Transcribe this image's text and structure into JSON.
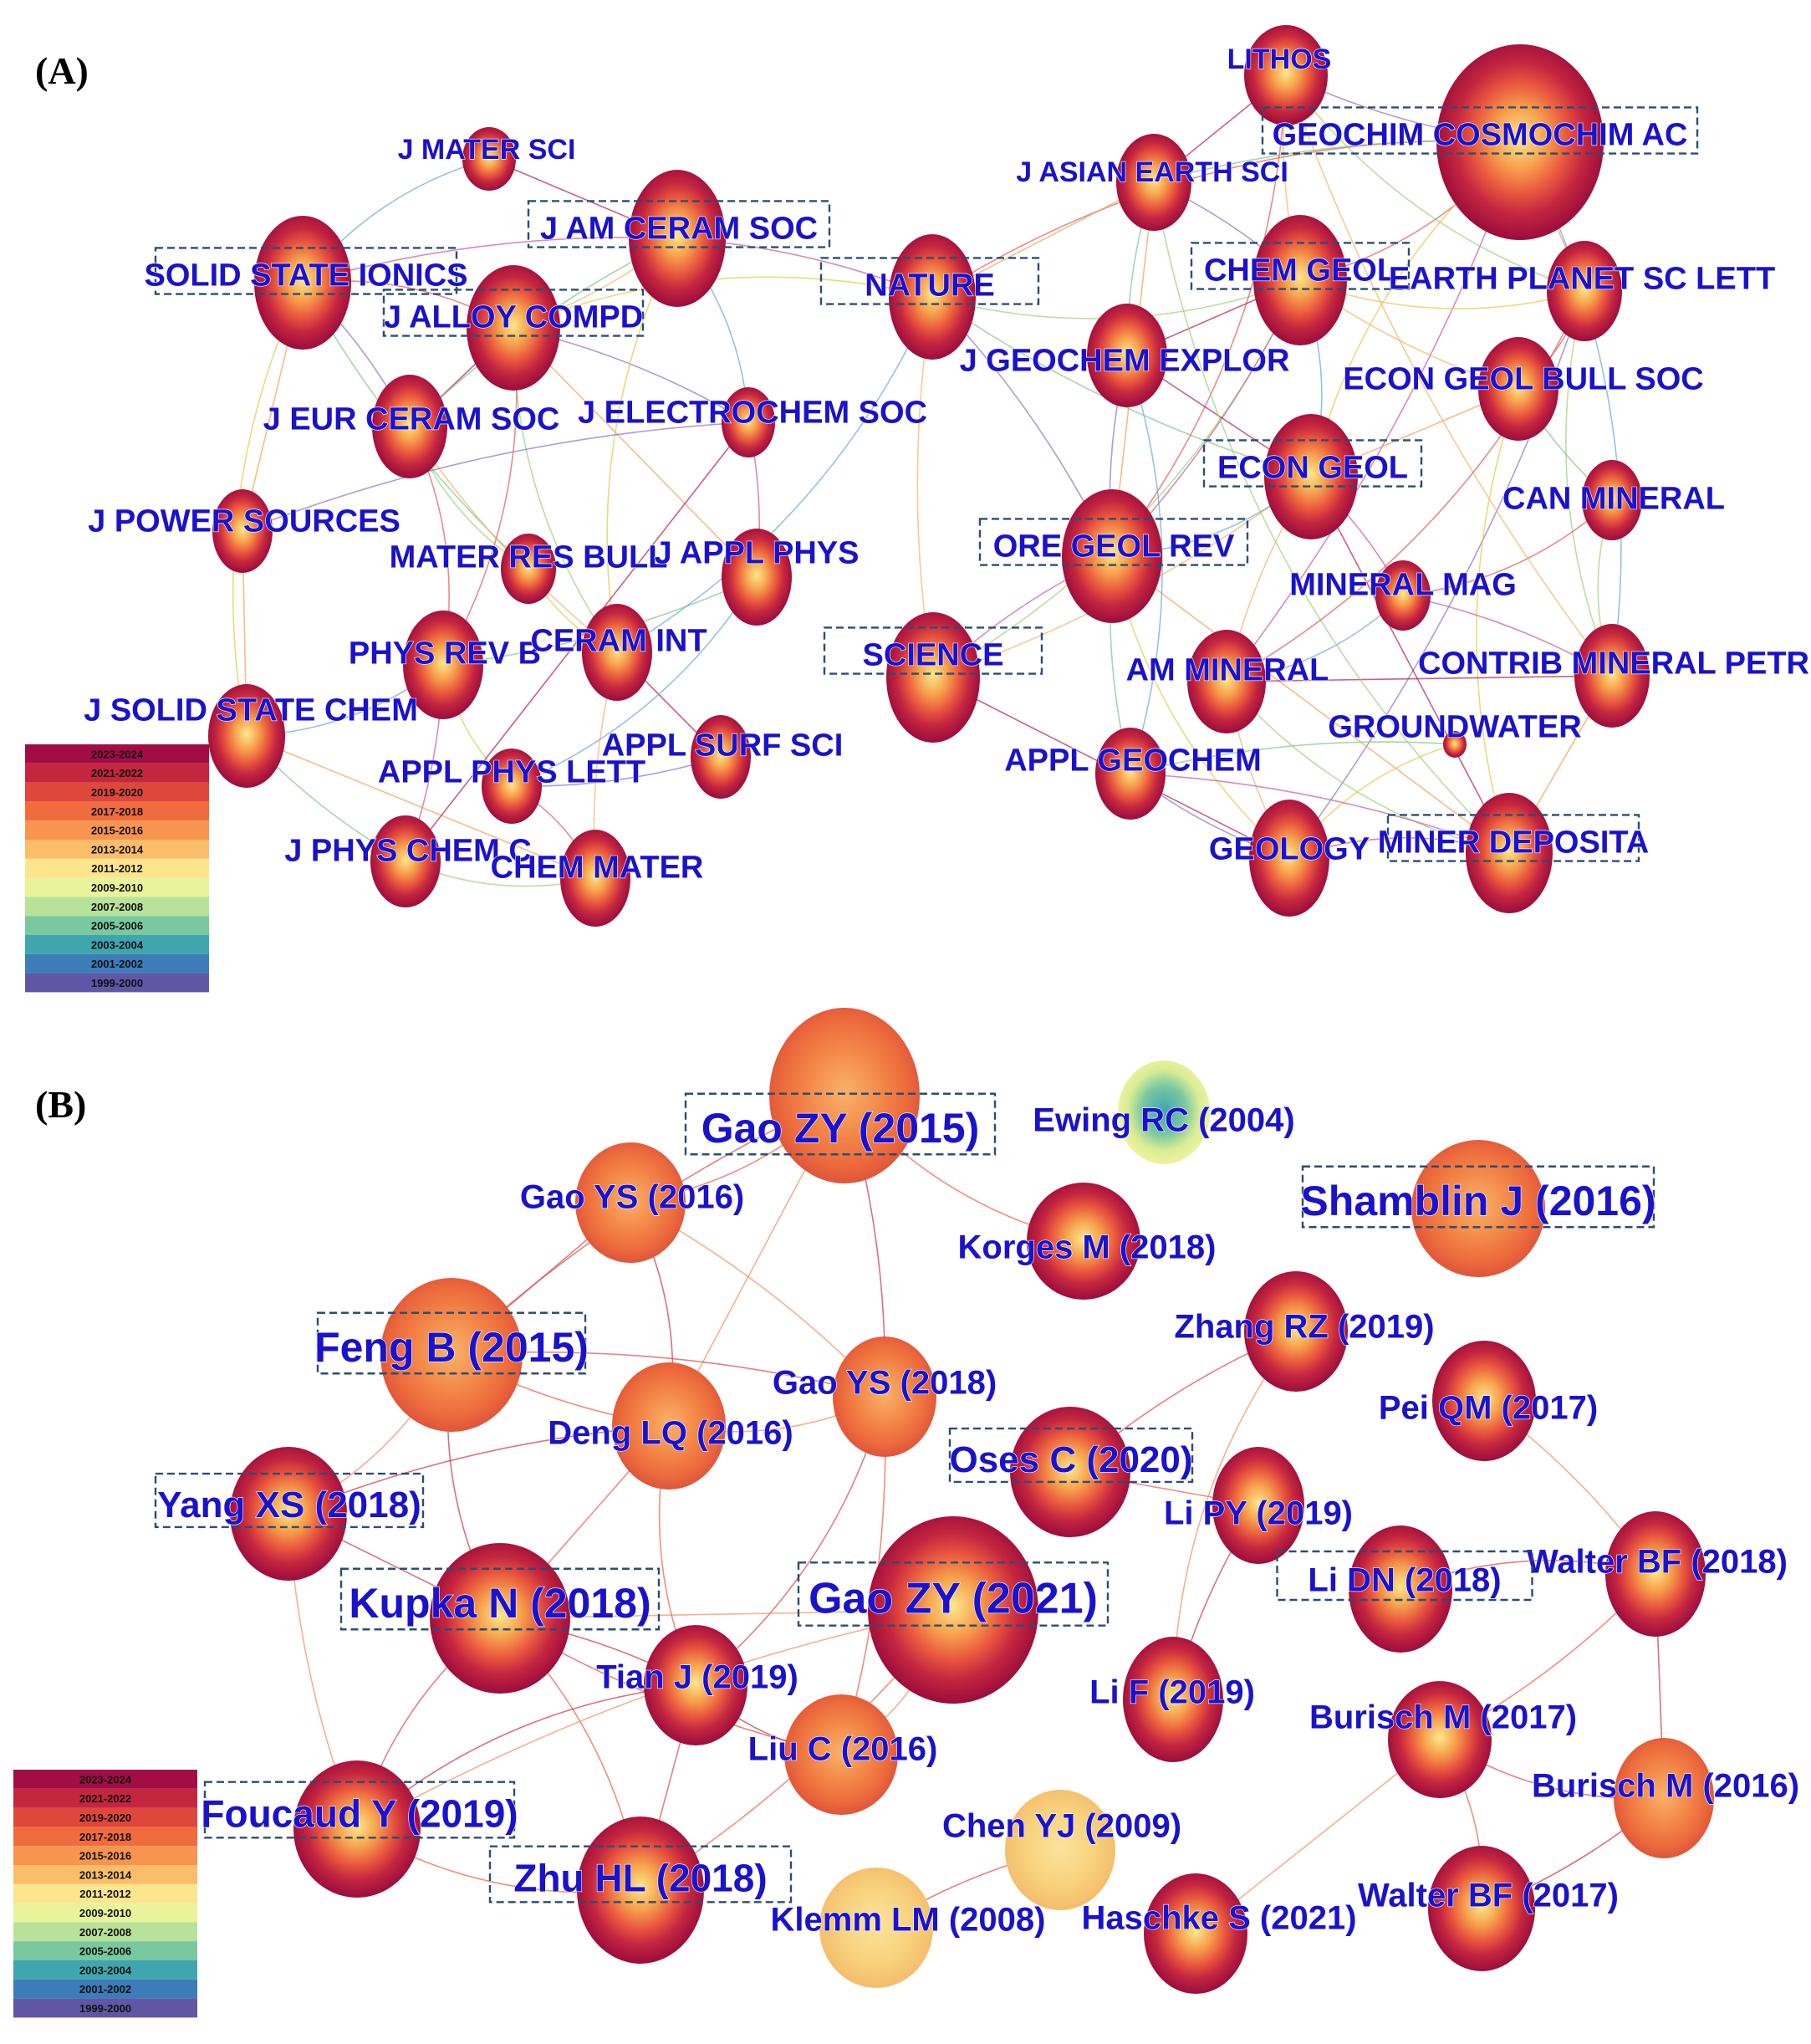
{
  "panels": [
    {
      "label": "(A)",
      "nodes": [
        {
          "id": "lithos",
          "label": "LITHOS",
          "boxed": false
        },
        {
          "id": "gca",
          "label": "GEOCHIM COSMOCHIM AC",
          "boxed": true
        },
        {
          "id": "jaes",
          "label": "J ASIAN EARTH SCI",
          "boxed": false
        },
        {
          "id": "jmatsci",
          "label": "J MATER SCI",
          "boxed": false
        },
        {
          "id": "jamceram",
          "label": "J AM CERAM SOC",
          "boxed": true
        },
        {
          "id": "ssi",
          "label": "SOLID STATE IONICS",
          "boxed": true
        },
        {
          "id": "nature",
          "label": "NATURE",
          "boxed": true
        },
        {
          "id": "chemgeol",
          "label": "CHEM GEOL",
          "boxed": true
        },
        {
          "id": "epsl",
          "label": "EARTH PLANET SC LETT",
          "boxed": false
        },
        {
          "id": "jalloy",
          "label": "J ALLOY COMPD",
          "boxed": true
        },
        {
          "id": "jgexplor",
          "label": "J GEOCHEM EXPLOR",
          "boxed": false
        },
        {
          "id": "egbs",
          "label": "ECON GEOL BULL SOC",
          "boxed": false
        },
        {
          "id": "jeurceram",
          "label": "J EUR CERAM SOC",
          "boxed": false
        },
        {
          "id": "jelectro",
          "label": "J ELECTROCHEM SOC",
          "boxed": false
        },
        {
          "id": "econgeol",
          "label": "ECON GEOL",
          "boxed": true
        },
        {
          "id": "canmin",
          "label": "CAN MINERAL",
          "boxed": false
        },
        {
          "id": "jpower",
          "label": "J POWER SOURCES",
          "boxed": false
        },
        {
          "id": "matres",
          "label": "MATER RES BULL",
          "boxed": false
        },
        {
          "id": "japplphys",
          "label": "J APPL PHYS",
          "boxed": false
        },
        {
          "id": "oregeol",
          "label": "ORE GEOL REV",
          "boxed": true
        },
        {
          "id": "minmag",
          "label": "MINERAL MAG",
          "boxed": false
        },
        {
          "id": "physrevb",
          "label": "PHYS REV B",
          "boxed": false
        },
        {
          "id": "ceramint",
          "label": "CERAM INT",
          "boxed": false
        },
        {
          "id": "science",
          "label": "SCIENCE",
          "boxed": true
        },
        {
          "id": "ammin",
          "label": "AM MINERAL",
          "boxed": false
        },
        {
          "id": "contrib",
          "label": "CONTRIB MINERAL PETR",
          "boxed": false
        },
        {
          "id": "jssc",
          "label": "J SOLID STATE CHEM",
          "boxed": false
        },
        {
          "id": "groundwater",
          "label": "GROUNDWATER",
          "boxed": false
        },
        {
          "id": "applsurf",
          "label": "APPL SURF SCI",
          "boxed": false
        },
        {
          "id": "applgeochem",
          "label": "APPL GEOCHEM",
          "boxed": false
        },
        {
          "id": "applphyslett",
          "label": "APPL PHYS LETT",
          "boxed": false
        },
        {
          "id": "jpcc",
          "label": "J PHYS CHEM C",
          "boxed": false
        },
        {
          "id": "chemmater",
          "label": "CHEM MATER",
          "boxed": false
        },
        {
          "id": "geology",
          "label": "GEOLOGY",
          "boxed": false
        },
        {
          "id": "minerdep",
          "label": "MINER DEPOSITA",
          "boxed": true
        }
      ]
    },
    {
      "label": "(B)",
      "nodes": [
        {
          "id": "gaozy15",
          "label": "Gao ZY (2015)",
          "boxed": true
        },
        {
          "id": "ewing",
          "label": "Ewing RC (2004)",
          "boxed": false
        },
        {
          "id": "gaoys16",
          "label": "Gao YS (2016)",
          "boxed": false
        },
        {
          "id": "shamblin",
          "label": "Shamblin J (2016)",
          "boxed": true
        },
        {
          "id": "korges",
          "label": "Korges M (2018)",
          "boxed": false
        },
        {
          "id": "fengb",
          "label": "Feng B (2015)",
          "boxed": true
        },
        {
          "id": "zhangrz",
          "label": "Zhang RZ (2019)",
          "boxed": false
        },
        {
          "id": "gaoys18",
          "label": "Gao YS (2018)",
          "boxed": false
        },
        {
          "id": "peiqm",
          "label": "Pei QM (2017)",
          "boxed": false
        },
        {
          "id": "denglq",
          "label": "Deng LQ (2016)",
          "boxed": false
        },
        {
          "id": "osesc",
          "label": "Oses C (2020)",
          "boxed": true
        },
        {
          "id": "yangxs",
          "label": "Yang XS (2018)",
          "boxed": true
        },
        {
          "id": "lipy",
          "label": "Li PY (2019)",
          "boxed": false
        },
        {
          "id": "walter18",
          "label": "Walter BF (2018)",
          "boxed": false
        },
        {
          "id": "lidn",
          "label": "Li DN (2018)",
          "boxed": true
        },
        {
          "id": "kupka",
          "label": "Kupka N (2018)",
          "boxed": true
        },
        {
          "id": "gaozy21",
          "label": "Gao ZY (2021)",
          "boxed": true
        },
        {
          "id": "tianj",
          "label": "Tian J (2019)",
          "boxed": false
        },
        {
          "id": "lif",
          "label": "Li F (2019)",
          "boxed": false
        },
        {
          "id": "burisch17",
          "label": "Burisch M (2017)",
          "boxed": false
        },
        {
          "id": "liuc",
          "label": "Liu C (2016)",
          "boxed": false
        },
        {
          "id": "burisch16",
          "label": "Burisch M (2016)",
          "boxed": false
        },
        {
          "id": "foucaud",
          "label": "Foucaud Y (2019)",
          "boxed": true
        },
        {
          "id": "chenyj",
          "label": "Chen YJ (2009)",
          "boxed": false
        },
        {
          "id": "zhuhl",
          "label": "Zhu HL (2018)",
          "boxed": true
        },
        {
          "id": "walter17",
          "label": "Walter BF (2017)",
          "boxed": false
        },
        {
          "id": "klemm",
          "label": "Klemm LM (2008)",
          "boxed": false
        },
        {
          "id": "haschke",
          "label": "Haschke S (2021)",
          "boxed": false
        }
      ]
    }
  ],
  "legend": {
    "entries": [
      {
        "label": "2023-2024",
        "color": "#a30d45"
      },
      {
        "label": "2021-2022",
        "color": "#c4263f"
      },
      {
        "label": "2019-2020",
        "color": "#e0473c"
      },
      {
        "label": "2017-2018",
        "color": "#f06b3e"
      },
      {
        "label": "2015-2016",
        "color": "#f7944f"
      },
      {
        "label": "2013-2014",
        "color": "#fbbd6a"
      },
      {
        "label": "2011-2012",
        "color": "#fde58e"
      },
      {
        "label": "2009-2010",
        "color": "#e8f39a"
      },
      {
        "label": "2007-2008",
        "color": "#b8e29a"
      },
      {
        "label": "2005-2006",
        "color": "#79c8a0"
      },
      {
        "label": "2003-2004",
        "color": "#3fa6ae"
      },
      {
        "label": "2001-2002",
        "color": "#3c7cb9"
      },
      {
        "label": "1999-2000",
        "color": "#6156a6"
      }
    ]
  }
}
